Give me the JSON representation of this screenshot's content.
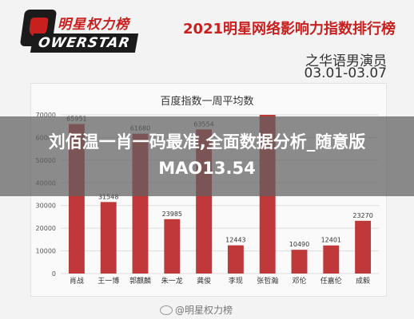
{
  "header": {
    "logo_top": "明星权力榜",
    "logo_bottom": "OWERSTAR",
    "title": "2021明星网络影响力指数排行榜",
    "subtitle": "之华语男演员",
    "date_range": "03.01-03.07"
  },
  "overlay": {
    "text": "刘佰温一肖一码最准,全面数据分析_随意版MAO13.54"
  },
  "watermark": {
    "text": "@明星权力榜"
  },
  "colors": {
    "bar": "#c0393a",
    "axis_text": "#555555",
    "grid": "#dddddd"
  },
  "chart_data": {
    "type": "bar",
    "title": "百度指数一周平均数",
    "categories": [
      "肖战",
      "王一博",
      "郭麒麟",
      "朱一龙",
      "龚俊",
      "李现",
      "张哲瀚",
      "邓伦",
      "任嘉伦",
      "成毅"
    ],
    "values": [
      65951,
      31548,
      61680,
      23985,
      63554,
      12443,
      70000,
      10490,
      12401,
      23270
    ],
    "value_labels": [
      "65951",
      "31548",
      "61680",
      "23985",
      "63554",
      "12443",
      "",
      "10490",
      "12401",
      "23270"
    ],
    "ylim": [
      0,
      70000
    ],
    "yticks": [
      0,
      10000,
      20000,
      30000,
      40000,
      50000,
      60000,
      70000
    ],
    "ytick_labels": [
      "0",
      "10000",
      "20000",
      "30000",
      "40000",
      "50000",
      "60000",
      "70000"
    ],
    "grid": true,
    "xlabel": "",
    "ylabel": ""
  }
}
